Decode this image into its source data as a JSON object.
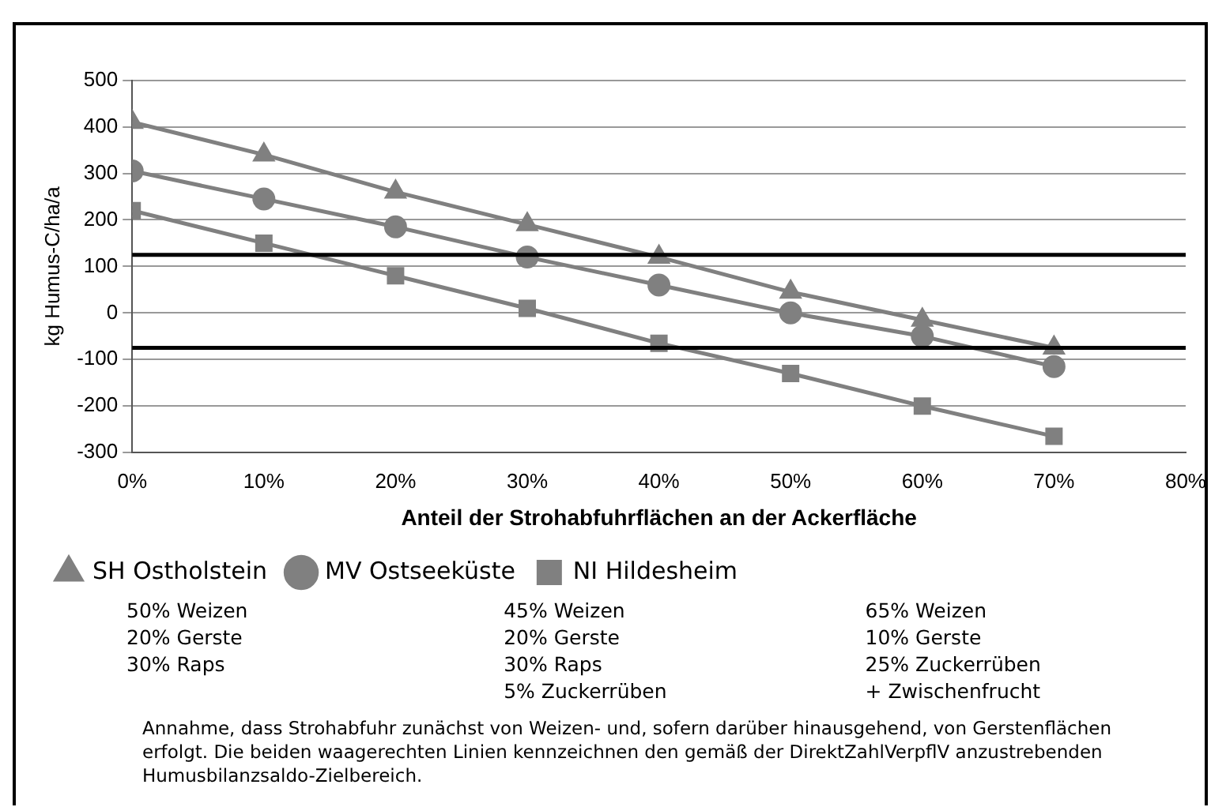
{
  "chart_data": {
    "type": "line",
    "xlabel": "Anteil der Strohabfuhrflächen an der Ackerfläche",
    "ylabel": "kg Humus-C/ha/a",
    "x": [
      0,
      10,
      20,
      30,
      40,
      50,
      60,
      70
    ],
    "series": [
      {
        "name": "SH Ostholstein",
        "color": "#808080",
        "marker": "triangle",
        "values": [
          410,
          340,
          260,
          190,
          120,
          45,
          -15,
          -75
        ]
      },
      {
        "name": "MV Ostseeküste",
        "color": "#808080",
        "marker": "circle",
        "values": [
          305,
          245,
          185,
          120,
          60,
          0,
          -50,
          -115
        ]
      },
      {
        "name": "NI Hildesheim",
        "color": "#808080",
        "marker": "square",
        "values": [
          220,
          150,
          80,
          10,
          -65,
          -130,
          -200,
          -265
        ]
      }
    ],
    "xlim": [
      0,
      80
    ],
    "xticks": [
      {
        "value": 0,
        "label": "0%"
      },
      {
        "value": 10,
        "label": "10%"
      },
      {
        "value": 20,
        "label": "20%"
      },
      {
        "value": 30,
        "label": "30%"
      },
      {
        "value": 40,
        "label": "40%"
      },
      {
        "value": 50,
        "label": "50%"
      },
      {
        "value": 60,
        "label": "60%"
      },
      {
        "value": 70,
        "label": "70%"
      },
      {
        "value": 80,
        "label": "80%"
      }
    ],
    "ylim": [
      -300,
      500
    ],
    "yticks": [
      -300,
      -200,
      -100,
      0,
      100,
      200,
      300,
      400,
      500
    ],
    "ref_lines": [
      {
        "axis": "y",
        "value": 125,
        "color": "#000000"
      },
      {
        "axis": "y",
        "value": -75,
        "color": "#000000"
      }
    ],
    "grid": "y",
    "legend": "bottom",
    "line_style": "solid",
    "annotations": [
      "50% Weizen\n20% Gerste\n30% Raps",
      "45% Weizen\n20% Gerste\n30% Raps\n5% Zuckerrüben",
      "65% Weizen\n10% Gerste\n25% Zuckerrüben\n+ Zwischenfrucht",
      "Annahme, dass Strohabfuhr zunächst von Weizen- und, sofern darüber hinausgehend, von Gerstenflächen erfolgt. Die beiden waagerechten Linien kennzeichnen den gemäß der DirektZahlVerpflV anzustrebenden Humusbilanzsaldo-Zielbereich."
    ]
  }
}
